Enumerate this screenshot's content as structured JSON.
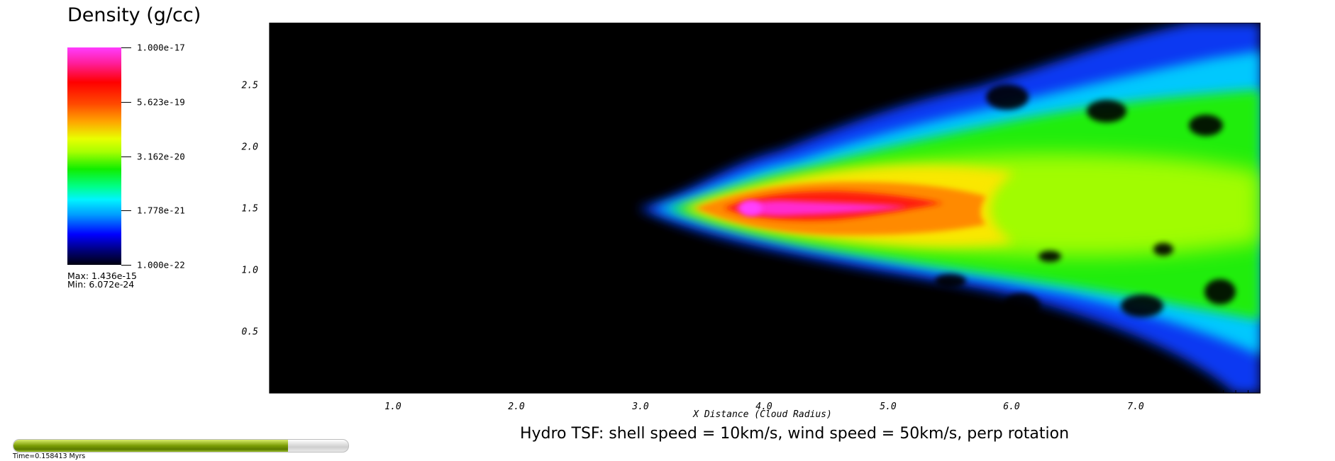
{
  "colorbar": {
    "title": "Density (g/cc)",
    "tick_labels": [
      "1.000e-17",
      "5.623e-19",
      "3.162e-20",
      "1.778e-21",
      "1.000e-22"
    ],
    "max_label": "Max:  1.436e-15",
    "min_label": "Min:  6.072e-24"
  },
  "chart_data": {
    "type": "heatmap",
    "title": "Hydro TSF: shell speed = 10km/s, wind speed = 50km/s, perp rotation",
    "xlabel": "X Distance (Cloud Radius)",
    "ylabel": "",
    "xlim": [
      0,
      8.0
    ],
    "ylim": [
      0,
      3.0
    ],
    "x_ticks": [
      1.0,
      2.0,
      3.0,
      4.0,
      5.0,
      6.0,
      7.0
    ],
    "x_tick_labels": [
      "1.0",
      "2.0",
      "3.0",
      "4.0",
      "5.0",
      "6.0",
      "7.0"
    ],
    "y_ticks": [
      0.5,
      1.0,
      1.5,
      2.0,
      2.5
    ],
    "y_tick_labels": [
      "0.5",
      "1.0",
      "1.5",
      "2.0",
      "2.5"
    ],
    "colorscale": "log",
    "color_range": [
      1e-22,
      1e-17
    ],
    "background_color": "#000000",
    "grid": false
  },
  "time_slider": {
    "progress_fraction": 0.82,
    "label": "Time=0.158413 Myrs"
  }
}
